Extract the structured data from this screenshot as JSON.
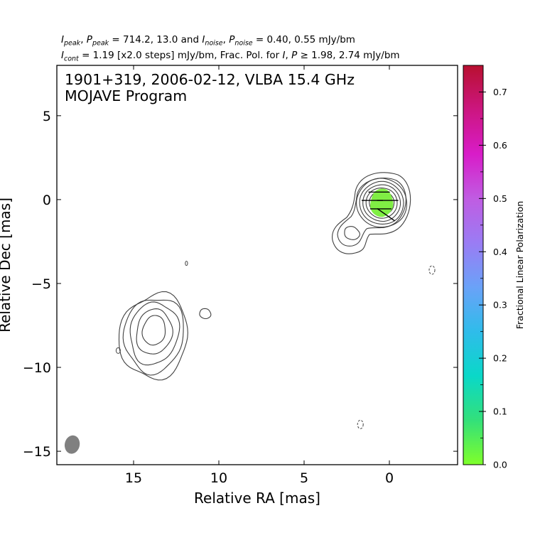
{
  "header": {
    "line1": {
      "i_peak_label": "I",
      "i_peak_sub": "peak",
      "p_peak_label": "P",
      "p_peak_sub": "peak",
      "peak_values": "714.2, 13.0",
      "and_text": "and",
      "i_noise_label": "I",
      "i_noise_sub": "noise",
      "p_noise_label": "P",
      "p_noise_sub": "noise",
      "noise_values": "0.40, 0.55 mJy/bm"
    },
    "line2": {
      "i_cont_label": "I",
      "i_cont_sub": "cont",
      "cont_text": "= 1.19 [x2.0 steps] mJy/bm, Frac. Pol. for",
      "i_label": "I",
      "p_label": "P",
      "geq": "≥",
      "threshold_values": "1.98, 2.74 mJy/bm"
    }
  },
  "panel": {
    "line1": "1901+319, 2006-02-12, VLBA 15.4 GHz",
    "line2": "MOJAVE Program"
  },
  "colorbar": {
    "label": "Fractional Linear Polarization",
    "range": [
      0.0,
      0.75
    ],
    "ticks": [
      "0.0",
      "0.1",
      "0.2",
      "0.3",
      "0.4",
      "0.5",
      "0.6",
      "0.7"
    ],
    "tick_values": [
      0.0,
      0.1,
      0.2,
      0.3,
      0.4,
      0.5,
      0.6,
      0.7
    ],
    "minor_ticks": [
      0.05,
      0.15,
      0.25,
      0.35,
      0.45,
      0.55,
      0.65
    ],
    "colors": [
      "#7fff2a",
      "#33e07a",
      "#0ad8c8",
      "#2fbcea",
      "#6aa2f8",
      "#9a7cf4",
      "#c05ce2",
      "#d81cc8",
      "#cc1680",
      "#b81030"
    ]
  },
  "chart_data": {
    "type": "contour",
    "xlabel": "Relative RA [mas]",
    "ylabel": "Relative Dec [mas]",
    "xlim": [
      19.5,
      -4.0
    ],
    "ylim": [
      -15.8,
      8.0
    ],
    "xticks": [
      15,
      10,
      5,
      0
    ],
    "yticks": [
      5,
      0,
      -5,
      -10,
      -15
    ],
    "contour_color": "#404040",
    "beam": {
      "center": [
        18.6,
        -14.6
      ],
      "color": "#808080"
    },
    "core_components": [
      {
        "name": "core",
        "center": [
          0.45,
          -0.2
        ],
        "levels": 8
      },
      {
        "name": "inner-knot",
        "center": [
          2.2,
          -2.0
        ],
        "levels": 3
      }
    ],
    "jet_components": [
      {
        "name": "south-east-blob",
        "center": [
          13.8,
          -7.8
        ],
        "levels": 5
      },
      {
        "name": "small-knot",
        "center": [
          10.8,
          -6.8
        ],
        "levels": 1
      },
      {
        "name": "edge-knot",
        "center": [
          15.9,
          -9.0
        ],
        "levels": 1
      },
      {
        "name": "tiny-feature",
        "center": [
          11.9,
          -3.8
        ],
        "levels": 1
      }
    ],
    "negative_contours": [
      {
        "center": [
          -2.5,
          -4.2
        ]
      },
      {
        "center": [
          1.7,
          -13.4
        ]
      }
    ],
    "polarization": {
      "region_center": [
        0.45,
        -0.2
      ],
      "fractional_value": 0.02,
      "evpa_vectors": [
        {
          "x": 1.0,
          "y": -0.05,
          "angle_deg": 0
        },
        {
          "x": 0.1,
          "y": -0.05,
          "angle_deg": 0
        },
        {
          "x": 0.5,
          "y": -0.55,
          "angle_deg": 0
        },
        {
          "x": 0.2,
          "y": -0.9,
          "angle_deg": -35
        },
        {
          "x": 0.6,
          "y": 0.45,
          "angle_deg": 0
        }
      ]
    }
  }
}
